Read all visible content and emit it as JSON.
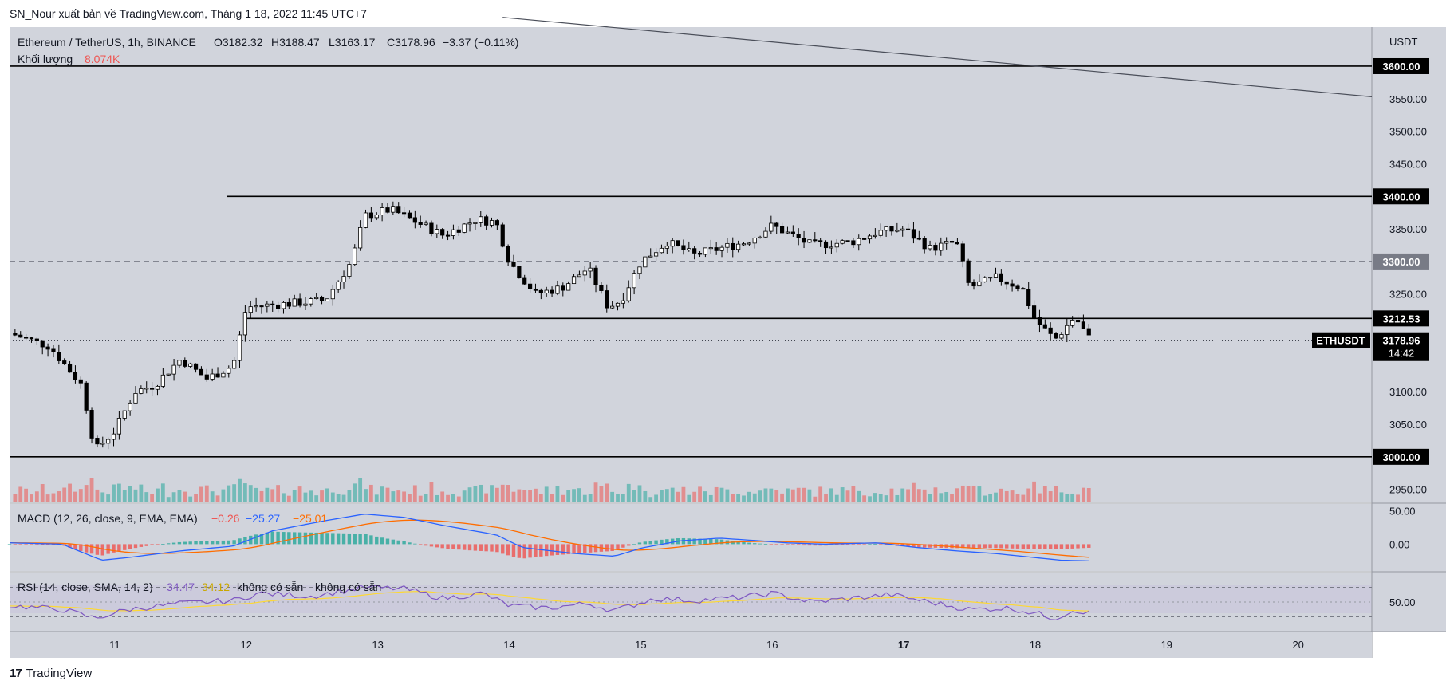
{
  "header": {
    "publisher_line": "SN_Nour xuất bản về TradingView.com, Tháng 1 18, 2022 11:45 UTC+7"
  },
  "footer": {
    "brand": "TradingView",
    "brand_mark": "17"
  },
  "colors": {
    "background": "#d1d4dc",
    "up": "#ffffff",
    "down": "#000000",
    "vol_up": "#26a69a",
    "vol_down": "#ef5350",
    "macd": "#2962ff",
    "signal": "#ff6d00",
    "rsi": "#7e57c2",
    "rsi_ma": "#fdd835"
  },
  "chart_data": {
    "type": "candlestick",
    "symbol_line": "Ethereum / TetherUS, 1h, BINANCE",
    "ohlc_labels": {
      "o": "O3182.32",
      "h": "H3188.47",
      "l": "L3163.17",
      "c": "C3178.96",
      "chg": "−3.37 (−0.11%)"
    },
    "volume_label": "Khối lượng",
    "volume_value": "8.074K",
    "currency": "USDT",
    "y_ticks": [
      "2950.00",
      "3050.00",
      "3100.00",
      "3250.00",
      "3350.00",
      "3450.00",
      "3500.00",
      "3550.00"
    ],
    "ylim": [
      2930,
      3660
    ],
    "x_labels": [
      "11",
      "12",
      "13",
      "14",
      "15",
      "16",
      "17",
      "18",
      "19",
      "20"
    ],
    "levels": [
      {
        "price": 3600,
        "label": "3600.00",
        "style": "solid",
        "start_day": 10.2
      },
      {
        "price": 3400,
        "label": "3400.00",
        "style": "solid",
        "start_day": 11.85
      },
      {
        "price": 3300,
        "label": "3300.00",
        "style": "dashed",
        "start_day": 10.2
      },
      {
        "price": 3212.53,
        "label": "3212.53",
        "style": "solid",
        "start_day": 12.0
      },
      {
        "price": 3000,
        "label": "3000.00",
        "style": "solid",
        "start_day": 10.2
      }
    ],
    "trendline": {
      "start": {
        "day": 13.95,
        "price": 3675
      },
      "end": {
        "day": 20.56,
        "price": 3553
      }
    },
    "last_price": {
      "symbol": "ETHUSDT",
      "price": "3178.96",
      "countdown": "14:42",
      "value": 3178.96
    },
    "anchors": [
      [
        10.2,
        3190
      ],
      [
        10.5,
        3170
      ],
      [
        10.75,
        3110
      ],
      [
        10.85,
        3010
      ],
      [
        11.0,
        3040
      ],
      [
        11.15,
        3100
      ],
      [
        11.3,
        3110
      ],
      [
        11.5,
        3150
      ],
      [
        11.7,
        3120
      ],
      [
        11.9,
        3140
      ],
      [
        12.0,
        3230
      ],
      [
        12.3,
        3235
      ],
      [
        12.6,
        3240
      ],
      [
        12.8,
        3300
      ],
      [
        12.9,
        3370
      ],
      [
        13.1,
        3380
      ],
      [
        13.3,
        3360
      ],
      [
        13.5,
        3340
      ],
      [
        13.75,
        3365
      ],
      [
        13.9,
        3360
      ],
      [
        14.0,
        3300
      ],
      [
        14.2,
        3250
      ],
      [
        14.4,
        3260
      ],
      [
        14.6,
        3290
      ],
      [
        14.75,
        3230
      ],
      [
        14.85,
        3240
      ],
      [
        15.0,
        3300
      ],
      [
        15.2,
        3330
      ],
      [
        15.4,
        3310
      ],
      [
        15.6,
        3320
      ],
      [
        15.8,
        3330
      ],
      [
        16.0,
        3355
      ],
      [
        16.3,
        3325
      ],
      [
        16.6,
        3330
      ],
      [
        16.8,
        3345
      ],
      [
        17.0,
        3350
      ],
      [
        17.2,
        3320
      ],
      [
        17.4,
        3330
      ],
      [
        17.5,
        3260
      ],
      [
        17.7,
        3275
      ],
      [
        17.9,
        3260
      ],
      [
        18.0,
        3210
      ],
      [
        18.15,
        3180
      ],
      [
        18.3,
        3215
      ],
      [
        18.42,
        3179
      ]
    ],
    "macd": {
      "label": "MACD (12, 26, close, 9, EMA, EMA)",
      "values": [
        "−0.26",
        "−25.27",
        "−25.01"
      ],
      "ticks": [
        "50.00",
        "0.00"
      ],
      "ylim": [
        -40,
        60
      ],
      "anchors": [
        [
          10.2,
          2
        ],
        [
          10.6,
          0
        ],
        [
          10.9,
          -24
        ],
        [
          11.1,
          -20
        ],
        [
          11.5,
          -10
        ],
        [
          11.9,
          -3
        ],
        [
          12.2,
          20
        ],
        [
          12.6,
          35
        ],
        [
          12.9,
          45
        ],
        [
          13.2,
          40
        ],
        [
          13.5,
          28
        ],
        [
          13.9,
          14
        ],
        [
          14.1,
          -5
        ],
        [
          14.5,
          -14
        ],
        [
          14.8,
          -18
        ],
        [
          15.0,
          -6
        ],
        [
          15.3,
          5
        ],
        [
          15.6,
          9
        ],
        [
          15.9,
          5
        ],
        [
          16.1,
          2
        ],
        [
          16.4,
          0
        ],
        [
          16.8,
          2
        ],
        [
          17.1,
          -5
        ],
        [
          17.4,
          -10
        ],
        [
          17.7,
          -14
        ],
        [
          18.0,
          -20
        ],
        [
          18.2,
          -24
        ],
        [
          18.42,
          -25
        ]
      ]
    },
    "rsi": {
      "label": "RSI (14, close, SMA, 14, 2)",
      "values": [
        "34.47",
        "34.12",
        "không có sẵn",
        "không có sẵn"
      ],
      "ticks": [
        "50.00"
      ],
      "ylim": [
        10,
        90
      ],
      "bands": [
        70,
        30
      ],
      "anchors": [
        [
          10.2,
          45
        ],
        [
          10.6,
          40
        ],
        [
          10.85,
          28
        ],
        [
          11.1,
          40
        ],
        [
          11.5,
          48
        ],
        [
          11.9,
          52
        ],
        [
          12.1,
          62
        ],
        [
          12.5,
          58
        ],
        [
          12.9,
          70
        ],
        [
          13.2,
          68
        ],
        [
          13.5,
          55
        ],
        [
          13.8,
          62
        ],
        [
          14.0,
          45
        ],
        [
          14.3,
          42
        ],
        [
          14.6,
          48
        ],
        [
          14.8,
          38
        ],
        [
          15.1,
          55
        ],
        [
          15.4,
          52
        ],
        [
          15.8,
          57
        ],
        [
          16.0,
          62
        ],
        [
          16.3,
          50
        ],
        [
          16.6,
          55
        ],
        [
          16.9,
          60
        ],
        [
          17.2,
          50
        ],
        [
          17.5,
          40
        ],
        [
          17.8,
          42
        ],
        [
          18.0,
          35
        ],
        [
          18.15,
          28
        ],
        [
          18.3,
          40
        ],
        [
          18.42,
          34
        ]
      ]
    }
  }
}
